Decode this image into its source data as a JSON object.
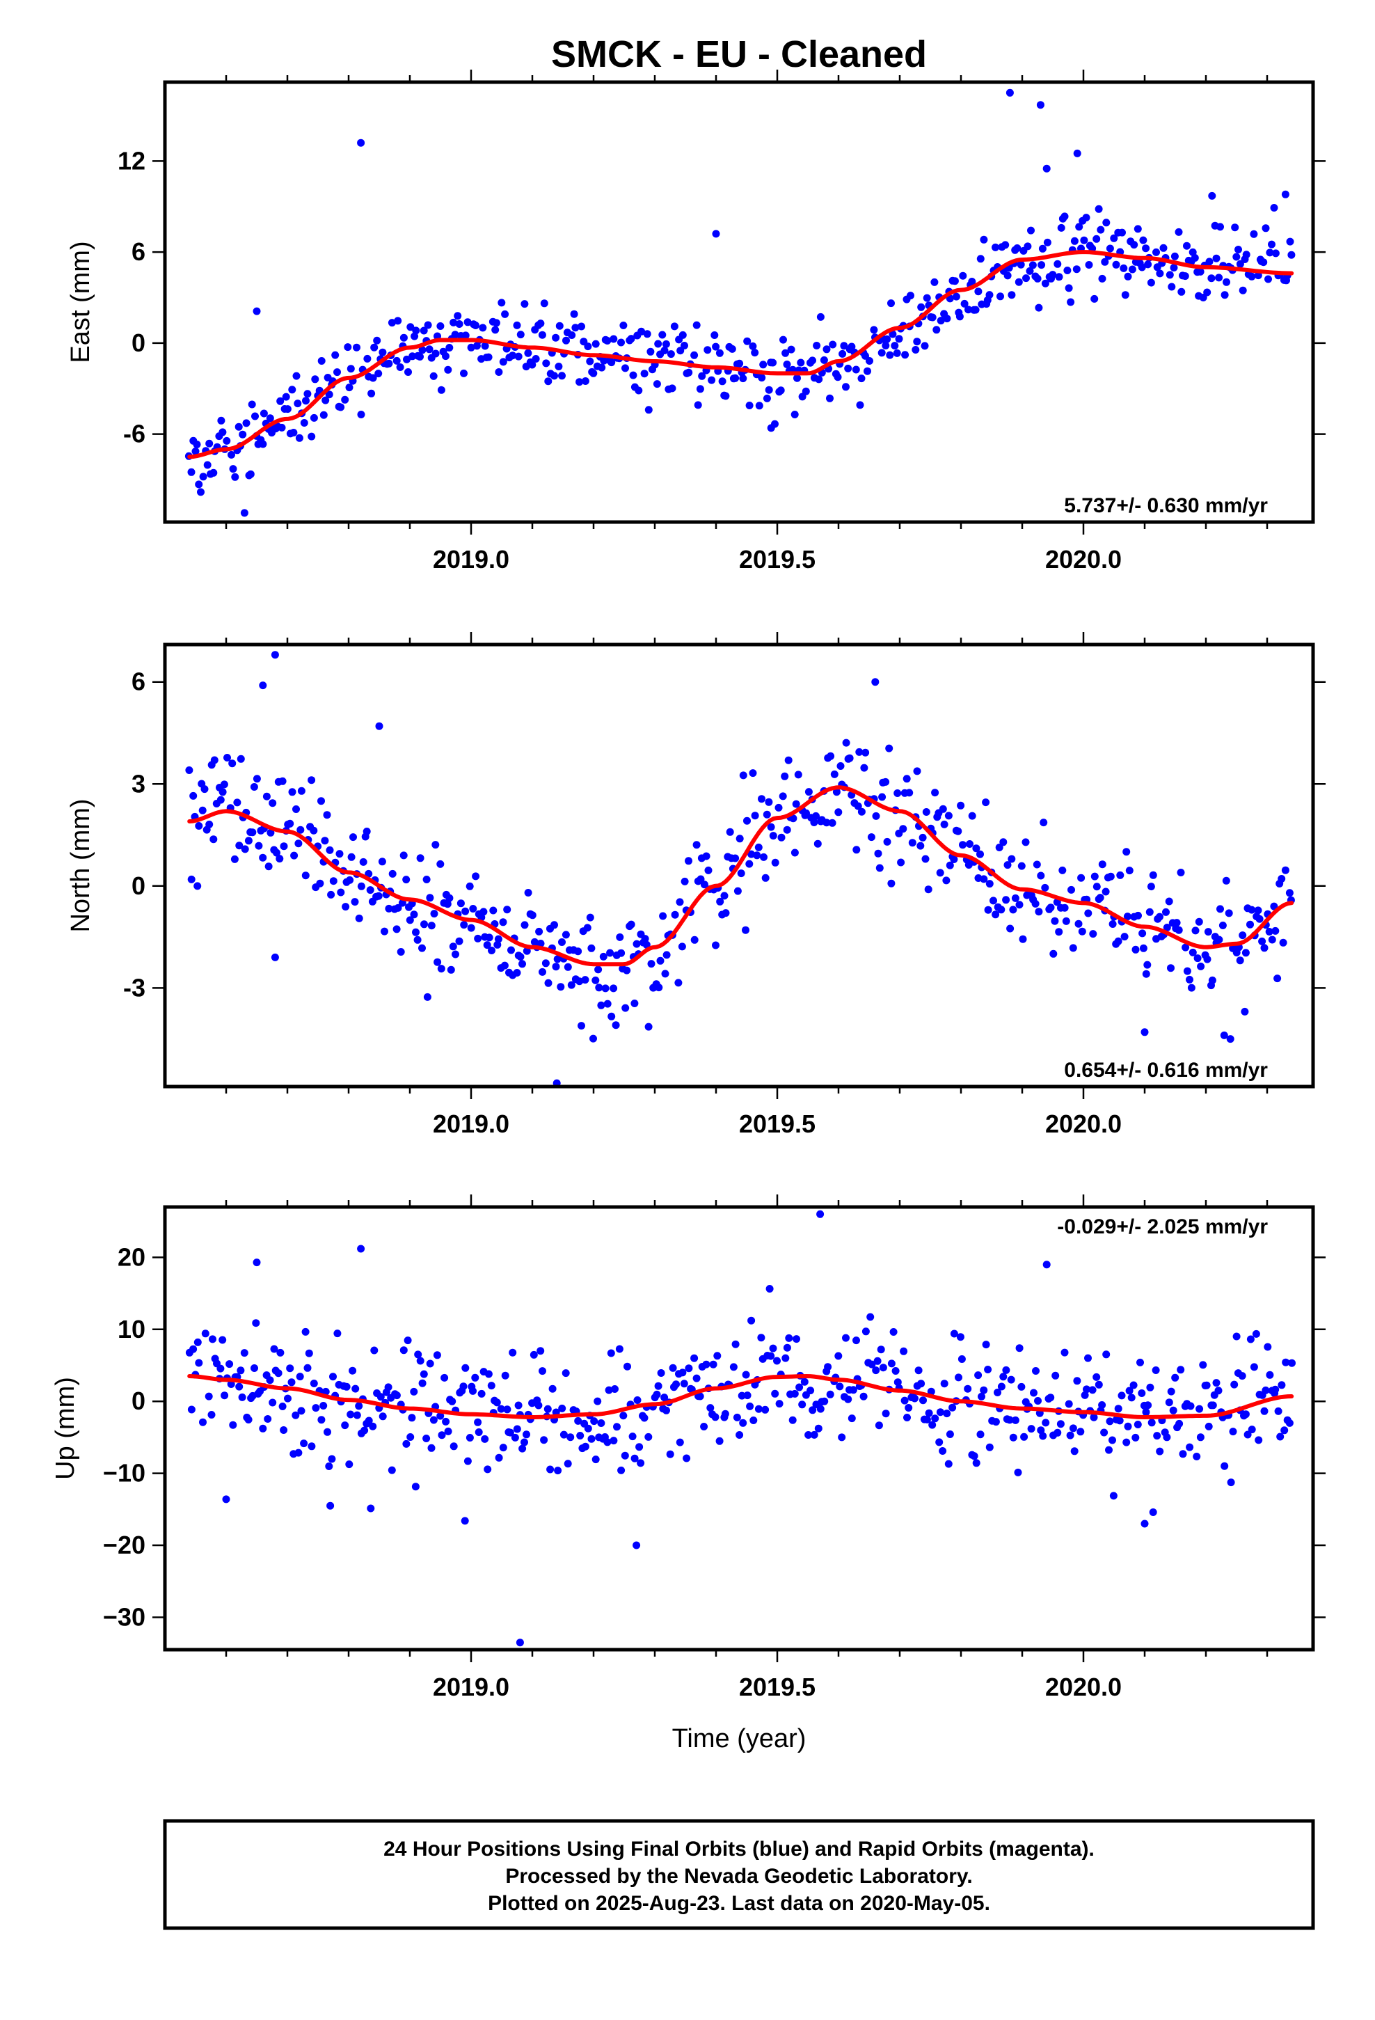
{
  "chart_data": {
    "type": "scatter",
    "title": "SMCK  - EU - Cleaned",
    "xlabel": "Time (year)",
    "footer": [
      "24 Hour Positions Using Final Orbits (blue) and Rapid Orbits (magenta).",
      "Processed by the Nevada Geodetic Laboratory.",
      "Plotted on 2025-Aug-23. Last data on 2020-May-05."
    ],
    "colors": {
      "final_orbits": "#0000ff",
      "trend": "#ff0000",
      "frame": "#000000"
    },
    "x_ticks": [
      2019.0,
      2019.5,
      2020.0
    ],
    "x_tick_labels": [
      "2019.0",
      "2019.5",
      "2020.0"
    ],
    "xlim": [
      2018.5,
      2020.375
    ],
    "panels": [
      {
        "ylabel": "East (mm)",
        "ylim": [
          -11.8,
          17.2
        ],
        "yticks": [
          -6,
          0,
          6,
          12
        ],
        "ytick_labels": [
          "-6",
          "0",
          "6",
          "12"
        ],
        "rate_label": "5.737+/- 0.630 mm/yr",
        "rate_position": "bottom-right",
        "noise_sd": 1.3,
        "trend": {
          "x": [
            2018.54,
            2018.6,
            2018.7,
            2018.8,
            2018.9,
            2018.95,
            2019.0,
            2019.1,
            2019.2,
            2019.3,
            2019.4,
            2019.5,
            2019.55,
            2019.6,
            2019.7,
            2019.8,
            2019.9,
            2020.0,
            2020.1,
            2020.2,
            2020.34
          ],
          "y": [
            -7.5,
            -7.0,
            -5.0,
            -2.3,
            -0.3,
            0.2,
            0.2,
            -0.3,
            -0.8,
            -1.2,
            -1.6,
            -2.0,
            -2.0,
            -1.2,
            1.0,
            3.5,
            5.5,
            6.0,
            5.6,
            5.0,
            4.6
          ]
        },
        "outliers": [
          {
            "x": 2018.82,
            "y": 13.2
          },
          {
            "x": 2019.88,
            "y": 16.5
          },
          {
            "x": 2019.93,
            "y": 15.7
          },
          {
            "x": 2019.94,
            "y": 11.5
          },
          {
            "x": 2019.99,
            "y": 12.5
          },
          {
            "x": 2019.4,
            "y": 7.2
          },
          {
            "x": 2018.65,
            "y": 2.1
          },
          {
            "x": 2018.63,
            "y": -11.2
          },
          {
            "x": 2019.49,
            "y": -5.6
          },
          {
            "x": 2020.21,
            "y": 9.7
          },
          {
            "x": 2020.33,
            "y": 9.8
          }
        ]
      },
      {
        "ylabel": "North (mm)",
        "ylim": [
          -5.9,
          7.1
        ],
        "yticks": [
          -3,
          0,
          3,
          6
        ],
        "ytick_labels": [
          "-3",
          "0",
          "3",
          "6"
        ],
        "rate_label": "0.654+/- 0.616 mm/yr",
        "rate_position": "bottom-right",
        "noise_sd": 0.85,
        "trend": {
          "x": [
            2018.54,
            2018.6,
            2018.7,
            2018.8,
            2018.9,
            2019.0,
            2019.1,
            2019.2,
            2019.25,
            2019.3,
            2019.4,
            2019.5,
            2019.6,
            2019.7,
            2019.8,
            2019.9,
            2020.0,
            2020.1,
            2020.2,
            2020.25,
            2020.34
          ],
          "y": [
            1.9,
            2.2,
            1.6,
            0.4,
            -0.4,
            -1.0,
            -1.8,
            -2.3,
            -2.3,
            -1.8,
            0.0,
            2.0,
            2.9,
            2.2,
            0.9,
            -0.1,
            -0.5,
            -1.2,
            -1.8,
            -1.7,
            -0.5
          ]
        },
        "outliers": [
          {
            "x": 2018.68,
            "y": 6.8
          },
          {
            "x": 2018.66,
            "y": 5.9
          },
          {
            "x": 2019.14,
            "y": -5.8
          },
          {
            "x": 2019.66,
            "y": 6.0
          },
          {
            "x": 2020.1,
            "y": -4.3
          },
          {
            "x": 2020.24,
            "y": -4.5
          },
          {
            "x": 2018.68,
            "y": -2.1
          },
          {
            "x": 2018.85,
            "y": 4.7
          }
        ]
      },
      {
        "ylabel": "Up (mm)",
        "ylim": [
          -34.5,
          27
        ],
        "yticks": [
          -30,
          -20,
          -10,
          0,
          10,
          20
        ],
        "ytick_labels": [
          "−30",
          "−20",
          "−10",
          "0",
          "10",
          "20"
        ],
        "rate_label": "-0.029+/- 2.025 mm/yr",
        "rate_position": "top-right",
        "noise_sd": 4.2,
        "trend": {
          "x": [
            2018.54,
            2018.6,
            2018.7,
            2018.8,
            2018.9,
            2019.0,
            2019.1,
            2019.2,
            2019.3,
            2019.4,
            2019.5,
            2019.55,
            2019.6,
            2019.7,
            2019.8,
            2019.9,
            2020.0,
            2020.1,
            2020.2,
            2020.34
          ],
          "y": [
            3.5,
            3.0,
            1.8,
            0.2,
            -1.0,
            -1.8,
            -2.2,
            -1.8,
            -0.4,
            1.8,
            3.4,
            3.5,
            3.0,
            1.5,
            0.0,
            -1.0,
            -1.5,
            -2.2,
            -2.0,
            0.7
          ]
        },
        "outliers": [
          {
            "x": 2019.08,
            "y": -33.5
          },
          {
            "x": 2019.27,
            "y": -20.0
          },
          {
            "x": 2019.57,
            "y": 26.0
          },
          {
            "x": 2018.82,
            "y": 21.2
          },
          {
            "x": 2018.65,
            "y": 19.3
          },
          {
            "x": 2019.94,
            "y": 19.0
          },
          {
            "x": 2018.99,
            "y": -16.6
          },
          {
            "x": 2020.1,
            "y": -17.0
          },
          {
            "x": 2018.6,
            "y": -13.6
          },
          {
            "x": 2018.77,
            "y": -14.5
          }
        ]
      }
    ]
  }
}
